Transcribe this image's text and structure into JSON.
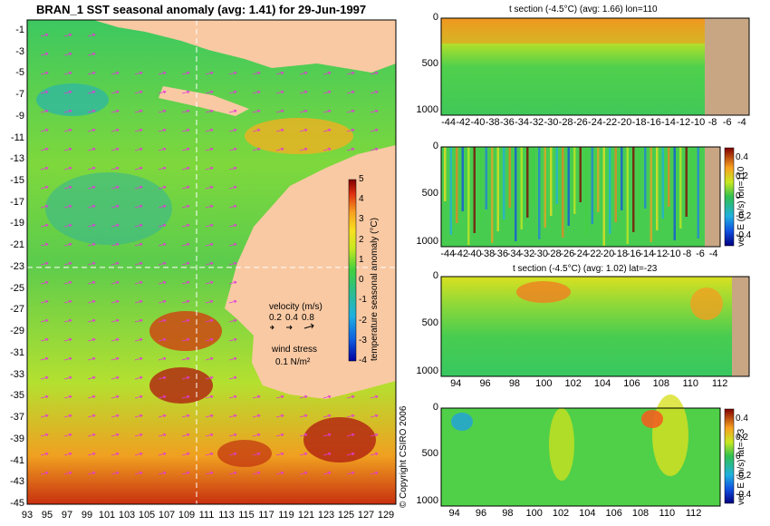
{
  "colors": {
    "land": "#f9c9a3",
    "seabed": "#c8a684",
    "grid": "#ffffff",
    "arrow": "#e23ad6"
  },
  "chart_data": [
    {
      "type": "heatmap",
      "title": "BRAN_1 SST seasonal anomaly (avg: 1.41) for 29-Jun-1997",
      "x_ticks": [
        "93",
        "95",
        "97",
        "99",
        "101",
        "103",
        "105",
        "107",
        "109",
        "111",
        "113",
        "115",
        "117",
        "119",
        "121",
        "123",
        "125",
        "127",
        "129"
      ],
      "y_ticks": [
        "-1",
        "-3",
        "-5",
        "-7",
        "-9",
        "-11",
        "-13",
        "-15",
        "-17",
        "-19",
        "-21",
        "-23",
        "-25",
        "-27",
        "-29",
        "-31",
        "-33",
        "-35",
        "-37",
        "-39",
        "-41",
        "-43",
        "-45"
      ],
      "xlim": [
        93,
        130
      ],
      "ylim": [
        -45,
        0
      ],
      "colorbar": {
        "label": "temperature seasonal anomaly (°C)",
        "ticks": [
          "5",
          "4",
          "3",
          "2",
          "1",
          "0",
          "-1",
          "-2",
          "-3",
          "-4"
        ],
        "range": [
          -4,
          5
        ]
      },
      "guide_lines": {
        "lon": 110,
        "lat": -23
      },
      "velocity_legend": {
        "title": "velocity (m/s)",
        "values": [
          "0.2",
          "0.4",
          "0.8"
        ]
      },
      "wind_legend": {
        "title": "wind stress",
        "value": "0.1 N/m²"
      },
      "copyright": "© Copyright CSIRO 2006"
    },
    {
      "type": "heatmap",
      "title": "t section (-4.5°C) (avg: 1.66) lon=110",
      "x_ticks": [
        "-44",
        "-42",
        "-40",
        "-38",
        "-36",
        "-34",
        "-32",
        "-30",
        "-28",
        "-26",
        "-24",
        "-22",
        "-20",
        "-18",
        "-16",
        "-14",
        "-12",
        "-10",
        "-8",
        "-6",
        "-4"
      ],
      "y_ticks": [
        "0",
        "500",
        "1000"
      ],
      "xlim": [
        -45,
        -3
      ],
      "ylim": [
        1050,
        0
      ],
      "land_from_x": -8.3
    },
    {
      "type": "heatmap",
      "title": "",
      "x_ticks": [
        "-44",
        "-42",
        "-40",
        "-38",
        "-36",
        "-34",
        "-32",
        "-30",
        "-28",
        "-26",
        "-24",
        "-22",
        "-20",
        "-18",
        "-16",
        "-14",
        "-12",
        "-10",
        "-8",
        "-6",
        "-4"
      ],
      "y_ticks": [
        "0",
        "500",
        "1000"
      ],
      "xlim": [
        -45,
        -3
      ],
      "ylim": [
        1050,
        0
      ],
      "land_from_x": -8.3,
      "colorbar": {
        "label": "vel. E (m/s) lon=110",
        "ticks": [
          "0.4",
          "0.2",
          "0",
          "-0.2",
          "-0.4"
        ],
        "range": [
          -0.5,
          0.5
        ]
      }
    },
    {
      "type": "heatmap",
      "title": "t section (-4.5°C) (avg: 1.02) lat=-23",
      "x_ticks": [
        "94",
        "96",
        "98",
        "100",
        "102",
        "104",
        "106",
        "108",
        "110",
        "112"
      ],
      "y_ticks": [
        "0",
        "500",
        "1000"
      ],
      "xlim": [
        93,
        114
      ],
      "ylim": [
        1050,
        0
      ],
      "land_from_x": 113.6
    },
    {
      "type": "heatmap",
      "title": "",
      "x_ticks": [
        "94",
        "96",
        "98",
        "100",
        "102",
        "104",
        "106",
        "108",
        "110",
        "112"
      ],
      "y_ticks": [
        "0",
        "500",
        "1000"
      ],
      "xlim": [
        93,
        114
      ],
      "ylim": [
        1050,
        0
      ],
      "land_from_x": 113.6,
      "colorbar": {
        "label": "vel. E (m/s) lat=-23",
        "ticks": [
          "0.4",
          "0.2",
          "0",
          "-0.2",
          "-0.4"
        ],
        "range": [
          -0.5,
          0.5
        ]
      }
    }
  ]
}
